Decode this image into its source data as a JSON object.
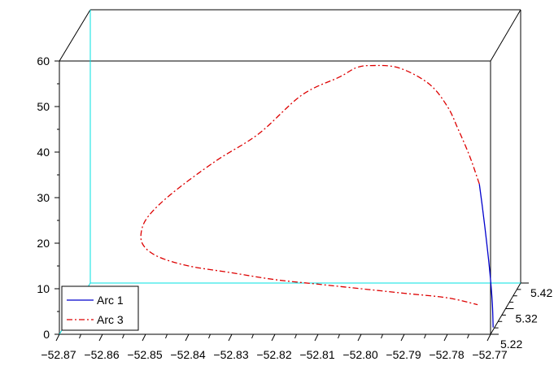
{
  "chart_data": {
    "type": "line",
    "projection": "3d",
    "x_ticks": [
      "−52.87",
      "−52.86",
      "−52.85",
      "−52.84",
      "−52.83",
      "−52.82",
      "−52.81",
      "−52.80",
      "−52.79",
      "−52.78",
      "−52.77"
    ],
    "y_ticks": [
      "5.22",
      "5.32",
      "5.42"
    ],
    "z_ticks": [
      "0",
      "10",
      "20",
      "30",
      "40",
      "50",
      "60"
    ],
    "xlim": [
      -52.87,
      -52.77
    ],
    "ylim": [
      5.22,
      5.42
    ],
    "zlim": [
      0,
      60
    ],
    "legend_position": "bottom-left",
    "series": [
      {
        "name": "Arc 1",
        "color": "#0000cc",
        "style": "solid",
        "x": [
          -52.7694,
          -52.7696,
          -52.7702,
          -52.771,
          -52.7719,
          -52.7726
        ],
        "z": [
          1.5,
          7,
          14,
          21,
          28,
          33
        ]
      },
      {
        "name": "Arc 3",
        "color": "#dd0000",
        "style": "dashdot",
        "x": [
          -52.7726,
          -52.7748,
          -52.7775,
          -52.78,
          -52.7843,
          -52.7913,
          -52.7977,
          -52.8012,
          -52.805,
          -52.8138,
          -52.8238,
          -52.8338,
          -52.8438,
          -52.8493,
          -52.851,
          -52.8505,
          -52.847,
          -52.84,
          -52.83,
          -52.82,
          -52.81,
          -52.8,
          -52.79,
          -52.78,
          -52.773
        ],
        "z": [
          33,
          39,
          45,
          50,
          55,
          58.5,
          59,
          58.5,
          56.5,
          52.5,
          44,
          38,
          31,
          26,
          22.5,
          19.5,
          17,
          15,
          13.5,
          12,
          11,
          10,
          9,
          8,
          6.5
        ]
      }
    ]
  }
}
